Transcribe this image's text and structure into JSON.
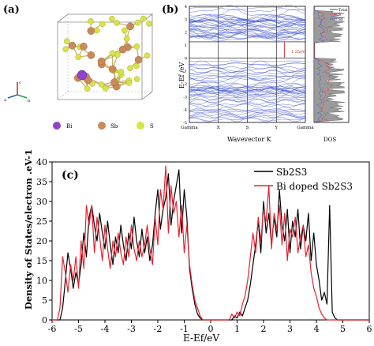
{
  "panels": {
    "a": {
      "label": "(a)",
      "legend": [
        {
          "label": "Bi",
          "color": "#8e44c8"
        },
        {
          "label": "Sb",
          "color": "#c98a5a"
        },
        {
          "label": "S",
          "color": "#d8e24a"
        }
      ],
      "axes_labels": {
        "a": "a",
        "b": "b",
        "c": "c"
      }
    },
    "b": {
      "label": "(b)",
      "ylabel": "E-Ef /eV",
      "xlabel": "Wavevector K",
      "dos_xlabel": "DOS",
      "kpoints": [
        "Gamma",
        "X",
        "S",
        "Y",
        "Gamma"
      ],
      "yticks": [
        "4",
        "3",
        "2",
        "1",
        "0",
        "-1",
        "-2",
        "-3",
        "-4",
        "-5"
      ],
      "gap_label": "1.25eV",
      "dos_legend": [
        {
          "label": "Total",
          "color": "#444444"
        },
        {
          "label": "S",
          "color": "#e0304a"
        },
        {
          "label": "Sb",
          "color": "#3050d0"
        }
      ]
    },
    "c": {
      "label": "(c)",
      "legend": [
        {
          "label": "Sb2S3",
          "color": "#000000"
        },
        {
          "label": "Bi doped Sb2S3",
          "color": "#e8202e"
        }
      ]
    }
  },
  "chart_data": {
    "type": "line",
    "title": "",
    "xlabel": "E-Ef/eV",
    "ylabel": "Density of States/electron .eV-1",
    "xlim": [
      -6,
      6
    ],
    "ylim": [
      0,
      40
    ],
    "xticks": [
      -6,
      -5,
      -4,
      -3,
      -2,
      -1,
      0,
      1,
      2,
      3,
      4,
      5,
      6
    ],
    "yticks": [
      0,
      5,
      10,
      15,
      20,
      25,
      30,
      35,
      40
    ],
    "grid": false,
    "legend_position": "top-right",
    "series": [
      {
        "name": "Sb2S3",
        "color": "#000000",
        "x": [
          -6,
          -5.7,
          -5.6,
          -5.5,
          -5.4,
          -5.3,
          -5.2,
          -5.1,
          -5.0,
          -4.9,
          -4.8,
          -4.7,
          -4.6,
          -4.5,
          -4.4,
          -4.3,
          -4.2,
          -4.1,
          -4.0,
          -3.9,
          -3.8,
          -3.7,
          -3.6,
          -3.5,
          -3.4,
          -3.3,
          -3.2,
          -3.1,
          -3.0,
          -2.9,
          -2.8,
          -2.7,
          -2.6,
          -2.5,
          -2.4,
          -2.3,
          -2.2,
          -2.1,
          -2.0,
          -1.9,
          -1.8,
          -1.7,
          -1.6,
          -1.5,
          -1.4,
          -1.3,
          -1.2,
          -1.1,
          -1.0,
          -0.9,
          -0.8,
          -0.7,
          -0.6,
          -0.5,
          -0.4,
          -0.3,
          -0.2,
          0,
          0.8,
          0.9,
          1.0,
          1.1,
          1.2,
          1.3,
          1.4,
          1.5,
          1.6,
          1.7,
          1.8,
          1.9,
          2.0,
          2.1,
          2.2,
          2.3,
          2.4,
          2.5,
          2.6,
          2.7,
          2.8,
          2.9,
          3.0,
          3.1,
          3.2,
          3.3,
          3.4,
          3.5,
          3.6,
          3.7,
          3.8,
          3.9,
          4.0,
          4.1,
          4.2,
          4.3,
          4.4,
          4.5,
          4.6,
          4.7,
          4.8,
          4.9,
          5.0,
          6
        ],
        "y": [
          0,
          0,
          3,
          10,
          17,
          13,
          8,
          12,
          9,
          14,
          22,
          16,
          26,
          29,
          24,
          20,
          27,
          22,
          18,
          25,
          19,
          14,
          21,
          17,
          24,
          19,
          15,
          22,
          18,
          26,
          20,
          16,
          23,
          17,
          21,
          15,
          19,
          27,
          33,
          23,
          28,
          31,
          37,
          24,
          30,
          34,
          38,
          22,
          33,
          26,
          13,
          8,
          4,
          1.5,
          0.5,
          0,
          0,
          0,
          0,
          1,
          0.5,
          2,
          1,
          3,
          5,
          9,
          14,
          19,
          25,
          17,
          30,
          22,
          27,
          19,
          26,
          21,
          33,
          24,
          20,
          28,
          17,
          25,
          21,
          28,
          18,
          24,
          20,
          27,
          15,
          22,
          14,
          10,
          5,
          7,
          4,
          29,
          2,
          0.5,
          0,
          0,
          0,
          0
        ]
      },
      {
        "name": "Bi doped Sb2S3",
        "color": "#e8202e",
        "x": [
          -6,
          -5.8,
          -5.7,
          -5.6,
          -5.5,
          -5.4,
          -5.3,
          -5.2,
          -5.1,
          -5.0,
          -4.9,
          -4.8,
          -4.7,
          -4.6,
          -4.5,
          -4.4,
          -4.3,
          -4.2,
          -4.1,
          -4.0,
          -3.9,
          -3.8,
          -3.7,
          -3.6,
          -3.5,
          -3.4,
          -3.3,
          -3.2,
          -3.1,
          -3.0,
          -2.9,
          -2.8,
          -2.7,
          -2.6,
          -2.5,
          -2.4,
          -2.3,
          -2.2,
          -2.1,
          -2.0,
          -1.9,
          -1.8,
          -1.7,
          -1.6,
          -1.5,
          -1.4,
          -1.3,
          -1.2,
          -1.1,
          -1.0,
          -0.9,
          -0.8,
          -0.7,
          -0.6,
          -0.5,
          -0.4,
          -0.3,
          0,
          0.7,
          0.8,
          0.9,
          1.0,
          1.1,
          1.2,
          1.3,
          1.4,
          1.5,
          1.6,
          1.7,
          1.8,
          1.9,
          2.0,
          2.1,
          2.2,
          2.3,
          2.4,
          2.5,
          2.6,
          2.7,
          2.8,
          2.9,
          3.0,
          3.1,
          3.2,
          3.3,
          3.4,
          3.5,
          3.6,
          3.7,
          3.8,
          3.9,
          4.0,
          4.1,
          4.2,
          4.3,
          4.4,
          4.5,
          4.6,
          6
        ],
        "y": [
          0,
          0,
          3,
          16,
          12,
          7,
          14,
          10,
          16,
          8,
          20,
          13,
          29,
          24,
          29,
          17,
          26,
          21,
          15,
          24,
          18,
          13,
          20,
          16,
          22,
          17,
          14,
          21,
          16,
          24,
          18,
          15,
          20,
          16,
          19,
          24,
          18,
          14,
          26,
          19,
          33,
          28,
          39,
          22,
          34,
          27,
          30,
          21,
          29,
          17,
          24,
          14,
          9,
          5,
          3,
          1,
          0,
          0,
          0,
          1.5,
          0.5,
          2,
          1,
          4,
          6,
          10,
          16,
          22,
          17,
          26,
          20,
          28,
          25,
          34,
          18,
          27,
          23,
          29,
          19,
          27,
          15,
          23,
          21,
          26,
          17,
          21,
          24,
          16,
          19,
          12,
          8,
          6,
          3,
          1.5,
          0.5,
          0,
          0,
          0,
          0
        ]
      }
    ]
  }
}
